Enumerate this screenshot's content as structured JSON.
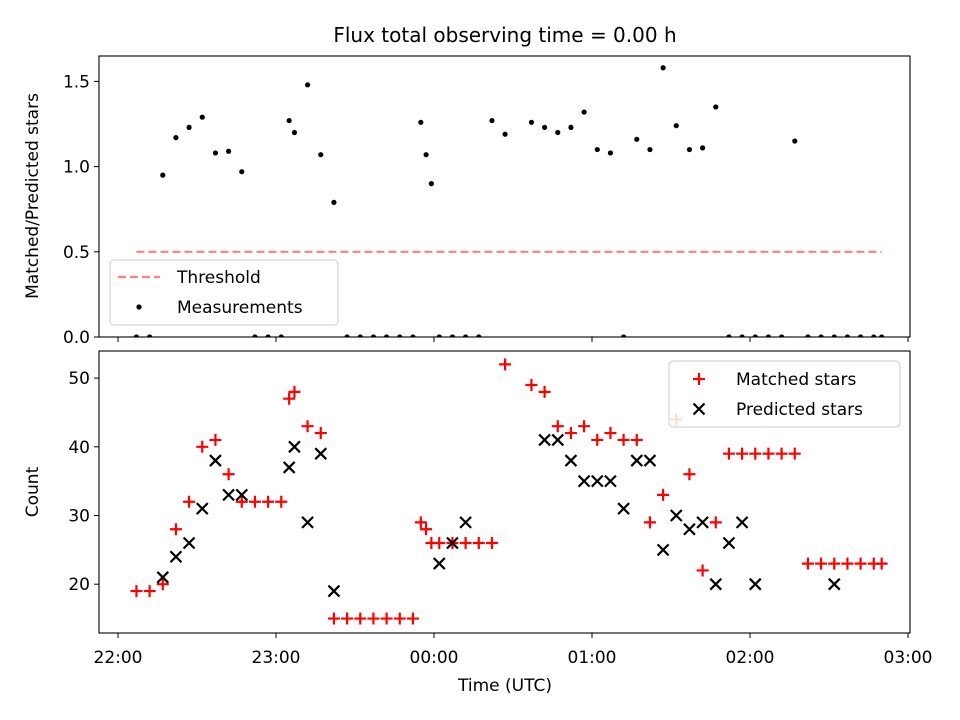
{
  "chart_data": [
    {
      "type": "scatter",
      "title": "Flux total observing time = 0.00 h",
      "ylabel": "Matched/Predicted stars",
      "xlabel": "",
      "xlim": [
        "21:52",
        "03:00"
      ],
      "ylim": [
        0,
        1.65
      ],
      "yticks": [
        "0.0",
        "0.5",
        "1.0",
        "1.5"
      ],
      "grid": false,
      "legend_position": "lower-left",
      "series": [
        {
          "name": "Threshold",
          "style": "dashed-line",
          "color": "#ff8080",
          "x": [
            "22:07",
            "02:50"
          ],
          "y": [
            0.5,
            0.5
          ]
        },
        {
          "name": "Measurements",
          "style": "dot",
          "color": "#000000",
          "x": [
            "22:07",
            "22:12",
            "22:17",
            "22:22",
            "22:27",
            "22:32",
            "22:37",
            "22:42",
            "22:47",
            "22:52",
            "22:57",
            "23:02",
            "23:05",
            "23:07",
            "23:12",
            "23:17",
            "23:22",
            "23:27",
            "23:32",
            "23:37",
            "23:42",
            "23:47",
            "23:52",
            "23:55",
            "23:57",
            "23:59",
            "00:02",
            "00:07",
            "00:12",
            "00:17",
            "00:22",
            "00:27",
            "00:37",
            "00:42",
            "00:47",
            "00:52",
            "00:57",
            "01:02",
            "01:07",
            "01:12",
            "01:17",
            "01:22",
            "01:27",
            "01:32",
            "01:37",
            "01:42",
            "01:47",
            "01:52",
            "01:57",
            "02:02",
            "02:07",
            "02:12",
            "02:17",
            "02:22",
            "02:27",
            "02:32",
            "02:37",
            "02:42",
            "02:47",
            "02:50"
          ],
          "y": [
            0.0,
            0.0,
            0.95,
            1.17,
            1.23,
            1.29,
            1.08,
            1.09,
            0.97,
            0.0,
            0.0,
            0.0,
            1.27,
            1.2,
            1.48,
            1.07,
            0.79,
            0.0,
            0.0,
            0.0,
            0.0,
            0.0,
            0.0,
            1.26,
            1.07,
            0.9,
            0.0,
            0.0,
            0.0,
            0.0,
            1.27,
            1.19,
            1.26,
            1.23,
            1.2,
            1.23,
            1.32,
            1.1,
            1.08,
            0.0,
            1.16,
            1.1,
            1.58,
            1.24,
            1.1,
            1.11,
            1.35,
            0.0,
            0.0,
            0.0,
            0.0,
            0.0,
            1.15,
            0.0,
            0.0,
            0.0,
            0.0,
            0.0,
            0.0,
            0.0
          ]
        }
      ]
    },
    {
      "type": "scatter",
      "title": "",
      "xlabel": "Time (UTC)",
      "ylabel": "Count",
      "xlim": [
        "21:52",
        "03:00"
      ],
      "ylim": [
        13,
        54
      ],
      "xticks": [
        "22:00",
        "23:00",
        "00:00",
        "01:00",
        "02:00",
        "03:00"
      ],
      "yticks": [
        "20",
        "30",
        "40",
        "50"
      ],
      "grid": false,
      "legend_position": "top-right",
      "series": [
        {
          "name": "Matched stars",
          "marker": "+",
          "color": "#ff0000",
          "x": [
            "22:07",
            "22:12",
            "22:17",
            "22:22",
            "22:27",
            "22:32",
            "22:37",
            "22:42",
            "22:47",
            "22:52",
            "22:57",
            "23:02",
            "23:05",
            "23:07",
            "23:12",
            "23:17",
            "23:22",
            "23:27",
            "23:32",
            "23:37",
            "23:42",
            "23:47",
            "23:52",
            "23:55",
            "23:57",
            "23:59",
            "00:02",
            "00:07",
            "00:12",
            "00:17",
            "00:22",
            "00:27",
            "00:37",
            "00:42",
            "00:47",
            "00:52",
            "00:57",
            "01:02",
            "01:07",
            "01:12",
            "01:17",
            "01:22",
            "01:27",
            "01:32",
            "01:37",
            "01:42",
            "01:47",
            "01:52",
            "01:57",
            "02:02",
            "02:07",
            "02:12",
            "02:17",
            "02:22",
            "02:27",
            "02:32",
            "02:37",
            "02:42",
            "02:47",
            "02:50"
          ],
          "y": [
            19,
            19,
            20,
            28,
            32,
            40,
            41,
            36,
            32,
            32,
            32,
            32,
            47,
            48,
            43,
            42,
            15,
            15,
            15,
            15,
            15,
            15,
            15,
            29,
            28,
            26,
            26,
            26,
            26,
            26,
            26,
            52,
            49,
            48,
            43,
            42,
            43,
            41,
            42,
            41,
            41,
            29,
            33,
            44,
            36,
            22,
            29,
            39,
            39,
            39,
            39,
            39,
            39,
            23,
            23,
            23,
            23,
            23,
            23,
            23
          ]
        },
        {
          "name": "Predicted stars",
          "marker": "x",
          "color": "#000000",
          "x": [
            "22:17",
            "22:22",
            "22:27",
            "22:32",
            "22:37",
            "22:42",
            "22:47",
            "23:05",
            "23:07",
            "23:12",
            "23:17",
            "23:22",
            "00:02",
            "00:07",
            "00:12",
            "00:42",
            "00:47",
            "00:52",
            "00:57",
            "01:02",
            "01:07",
            "01:12",
            "01:17",
            "01:22",
            "01:27",
            "01:32",
            "01:37",
            "01:42",
            "01:47",
            "01:52",
            "01:57",
            "02:02",
            "02:32"
          ],
          "y": [
            21,
            24,
            26,
            31,
            38,
            33,
            33,
            37,
            40,
            29,
            39,
            19,
            23,
            26,
            29,
            41,
            41,
            38,
            35,
            35,
            35,
            31,
            38,
            38,
            25,
            30,
            28,
            29,
            20,
            26,
            29,
            20,
            20
          ]
        }
      ]
    }
  ]
}
